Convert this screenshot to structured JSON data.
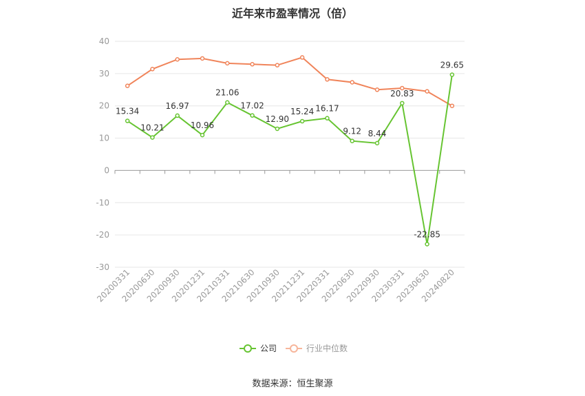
{
  "title": "近年来市盈率情况（倍）",
  "source": "数据来源：恒生聚源",
  "colors": {
    "company": "#66c431",
    "industry": "#f0845a",
    "grid": "#e6e6e6",
    "axis": "#999999",
    "label": "#333333"
  },
  "chart_data": {
    "type": "line",
    "title": "近年来市盈率情况（倍）",
    "xlabel": "",
    "ylabel": "",
    "categories": [
      "20200331",
      "20200630",
      "20200930",
      "20201231",
      "20210331",
      "20210630",
      "20210930",
      "20211231",
      "20220331",
      "20220630",
      "20220930",
      "20230331",
      "20230630",
      "20240820"
    ],
    "ylim": [
      -30,
      40
    ],
    "yticks": [
      -30,
      -20,
      -10,
      0,
      10,
      20,
      30,
      40
    ],
    "grid": true,
    "legend_position": "bottom-center",
    "series": [
      {
        "name": "公司",
        "values": [
          15.34,
          10.21,
          16.97,
          10.96,
          21.06,
          17.02,
          12.9,
          15.24,
          16.17,
          9.12,
          8.44,
          20.83,
          -22.85,
          29.65
        ],
        "labels": [
          "15.34",
          "10.21",
          "16.97",
          "10.96",
          "21.06",
          "17.02",
          "12.90",
          "15.24",
          "16.17",
          "9.12",
          "8.44",
          "20.83",
          "-22.85",
          "29.65"
        ]
      },
      {
        "name": "行业中位数",
        "values": [
          26.2,
          31.4,
          34.4,
          34.7,
          33.2,
          32.9,
          32.6,
          35.0,
          28.2,
          27.3,
          25.0,
          25.5,
          24.5,
          20.0
        ]
      }
    ]
  }
}
